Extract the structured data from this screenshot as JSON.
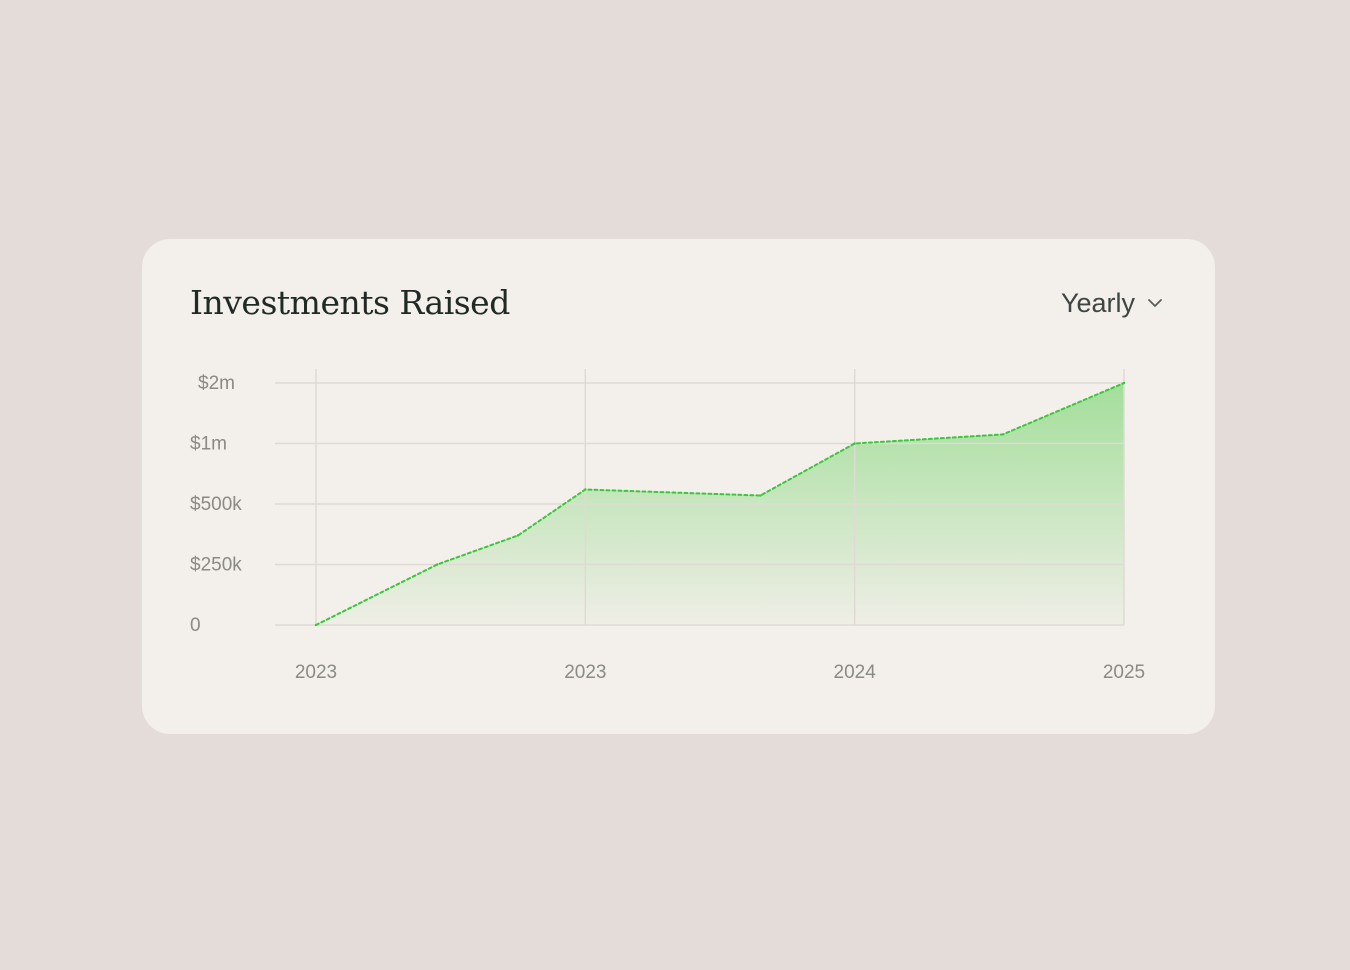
{
  "card": {
    "title": "Investments Raised",
    "period_selector": {
      "selected": "Yearly",
      "icon": "chevron-down-icon"
    }
  },
  "chart_data": {
    "type": "area",
    "title": "Investments Raised",
    "x_tick_labels": [
      "2023",
      "2023",
      "2024",
      "2025"
    ],
    "y_tick_labels": [
      "0",
      "$250k",
      "$500k",
      "$1m",
      "$2m"
    ],
    "y_tick_values": [
      0,
      250000,
      500000,
      1000000,
      2000000
    ],
    "y_scale": "piecewise (ticks evenly spaced)",
    "x_index": [
      0,
      0.45,
      0.75,
      1.0,
      1.65,
      2.0,
      2.55,
      3.0
    ],
    "values": [
      0,
      250000,
      370000,
      620000,
      570000,
      1000000,
      1150000,
      2000000
    ],
    "line_style": "dotted",
    "grid": true,
    "colors": {
      "line": "#3cc63c",
      "fill_top": "#a3de9a",
      "fill_bottom": "#efeee6",
      "grid": "#e0dad5"
    }
  }
}
